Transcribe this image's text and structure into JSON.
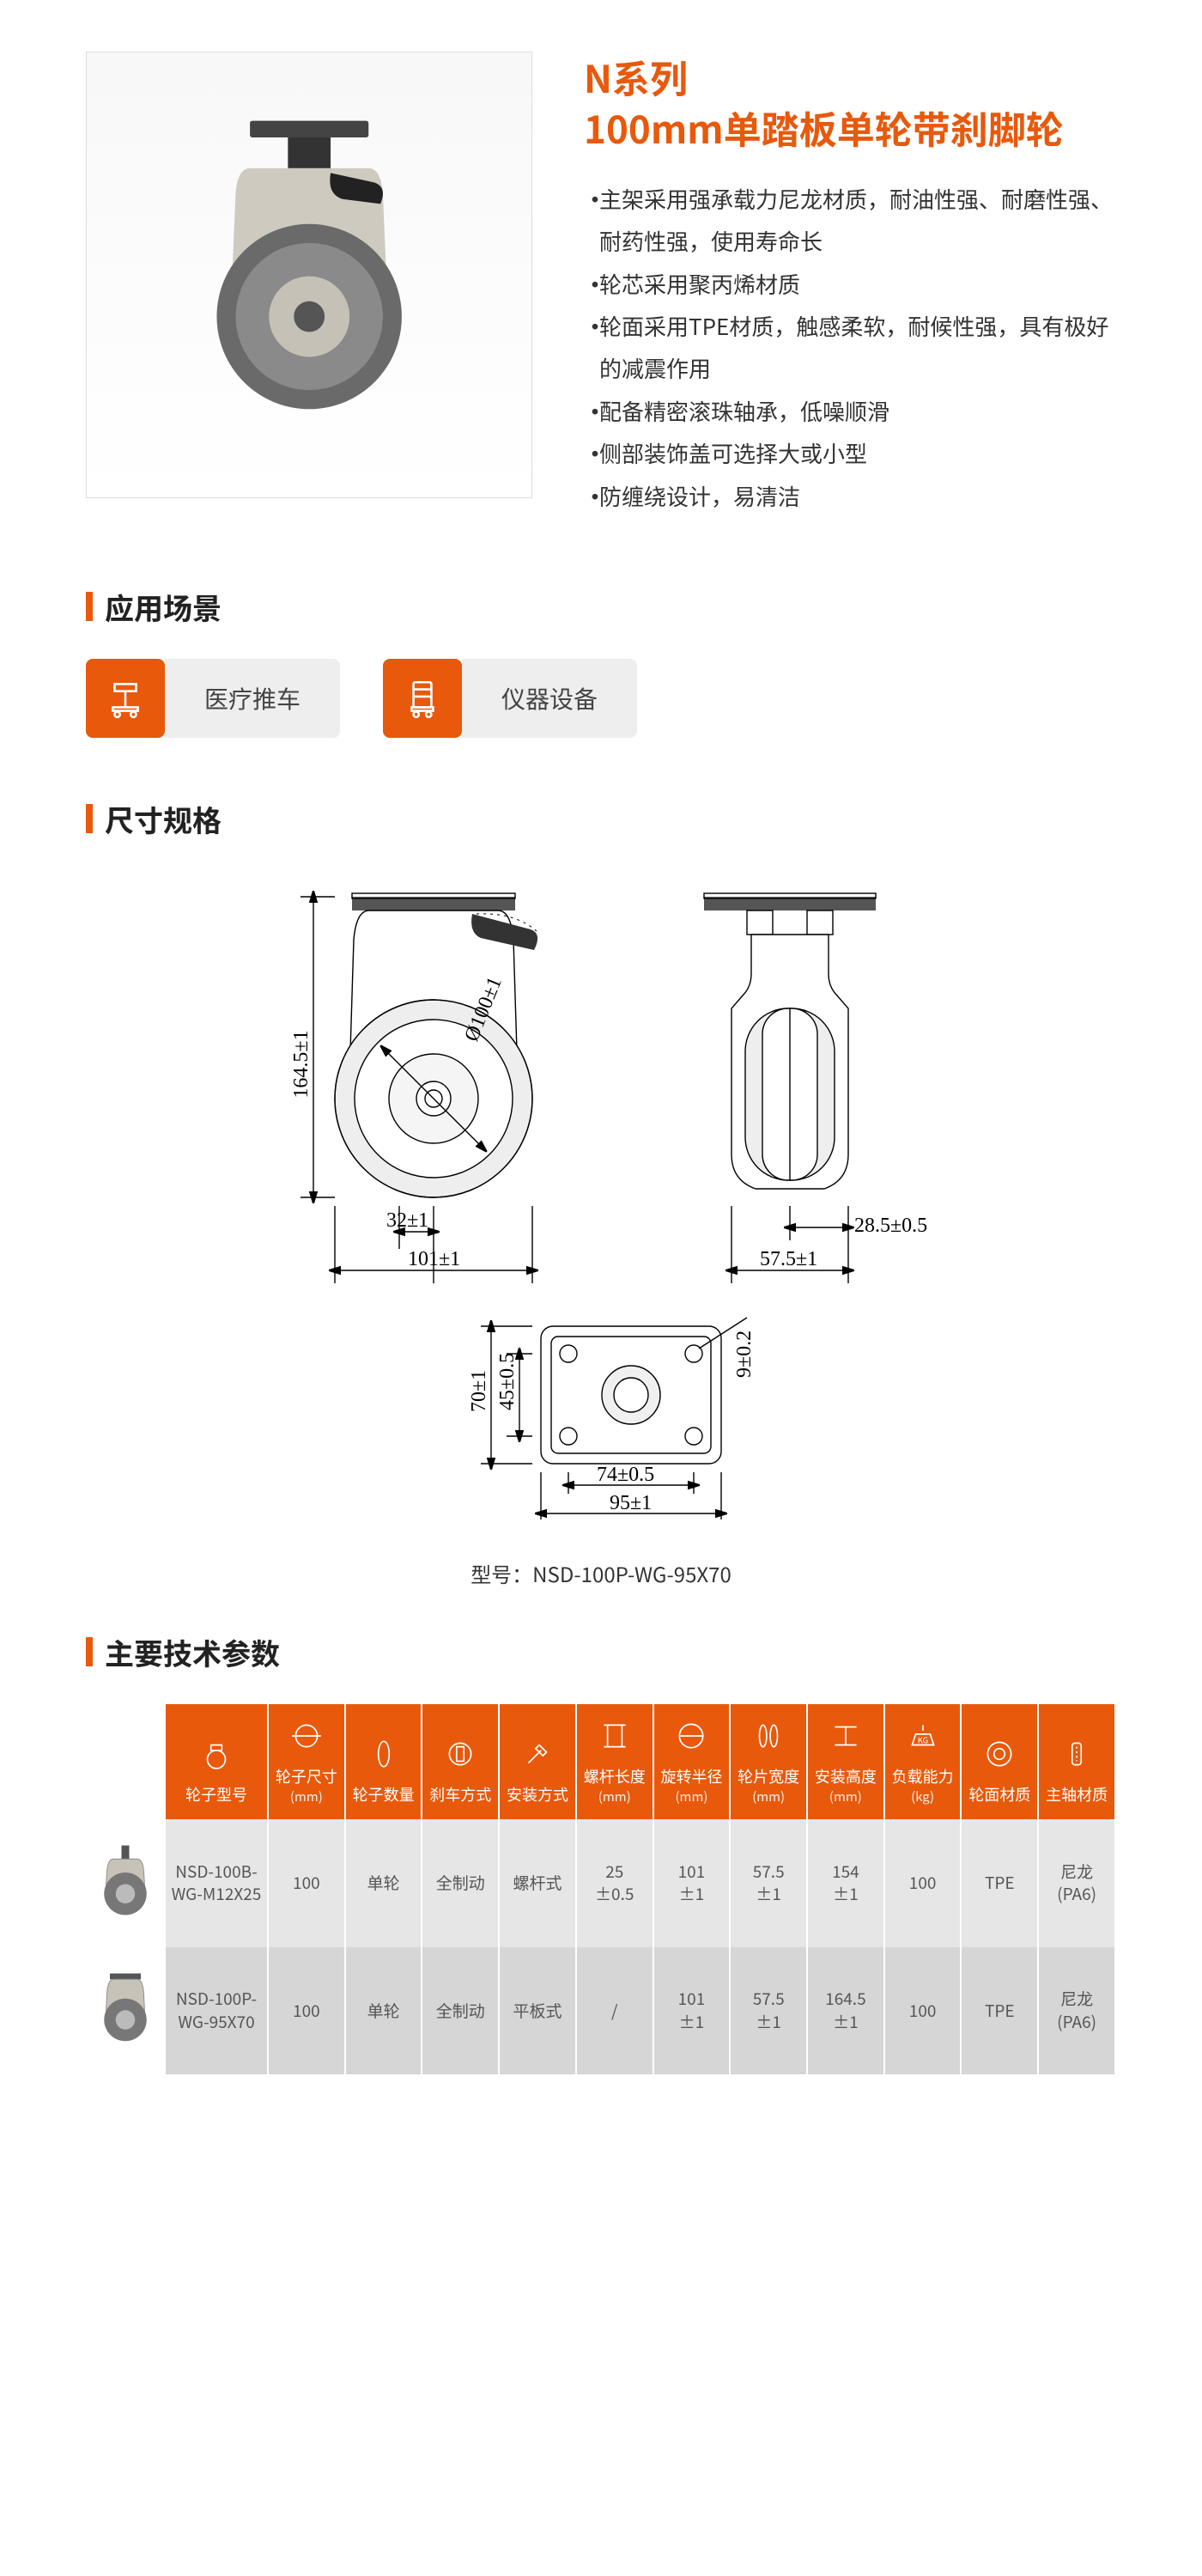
{
  "accent": "#e8590c",
  "title_line1": "N系列",
  "title_line2": "100mm单踏板单轮带刹脚轮",
  "features": [
    "主架采用强承载力尼龙材质，耐油性强、耐磨性强、耐药性强，使用寿命长",
    "轮芯采用聚丙烯材质",
    "轮面采用TPE材质，触感柔软，耐候性强，具有极好的减震作用",
    "配备精密滚珠轴承，低噪顺滑",
    "侧部装饰盖可选择大或小型",
    "防缠绕设计，易清洁"
  ],
  "section_app": "应用场景",
  "app1": "医疗推车",
  "app2": "仪器设备",
  "section_dims": "尺寸规格",
  "diagram": {
    "h_total": "164.5±1",
    "diameter": "Ø100±1",
    "offset": "32±1",
    "front_w": "101±1",
    "side_w": "57.5±1",
    "side_half": "28.5±0.5",
    "plate_w": "95±1",
    "plate_w_inner": "74±0.5",
    "plate_h": "70±1",
    "plate_h_inner": "45±0.5",
    "hole_d": "9±0.2"
  },
  "model_caption": "型号：NSD-100P-WG-95X70",
  "section_spec": "主要技术参数",
  "spec_headers": [
    {
      "label": "轮子型号",
      "unit": ""
    },
    {
      "label": "轮子尺寸",
      "unit": "(mm)"
    },
    {
      "label": "轮子数量",
      "unit": ""
    },
    {
      "label": "刹车方式",
      "unit": ""
    },
    {
      "label": "安装方式",
      "unit": ""
    },
    {
      "label": "螺杆长度",
      "unit": "(mm)"
    },
    {
      "label": "旋转半径",
      "unit": "(mm)"
    },
    {
      "label": "轮片宽度",
      "unit": "(mm)"
    },
    {
      "label": "安装高度",
      "unit": "(mm)"
    },
    {
      "label": "负载能力",
      "unit": "(kg)"
    },
    {
      "label": "轮面材质",
      "unit": ""
    },
    {
      "label": "主轴材质",
      "unit": ""
    }
  ],
  "spec_rows": [
    [
      "NSD-100B-WG-M12X25",
      "100",
      "单轮",
      "全制动",
      "螺杆式",
      "25\n±0.5",
      "101\n±1",
      "57.5\n±1",
      "154\n±1",
      "100",
      "TPE",
      "尼龙\n(PA6)"
    ],
    [
      "NSD-100P-WG-95X70",
      "100",
      "单轮",
      "全制动",
      "平板式",
      "/",
      "101\n±1",
      "57.5\n±1",
      "164.5\n±1",
      "100",
      "TPE",
      "尼龙\n(PA6)"
    ]
  ]
}
